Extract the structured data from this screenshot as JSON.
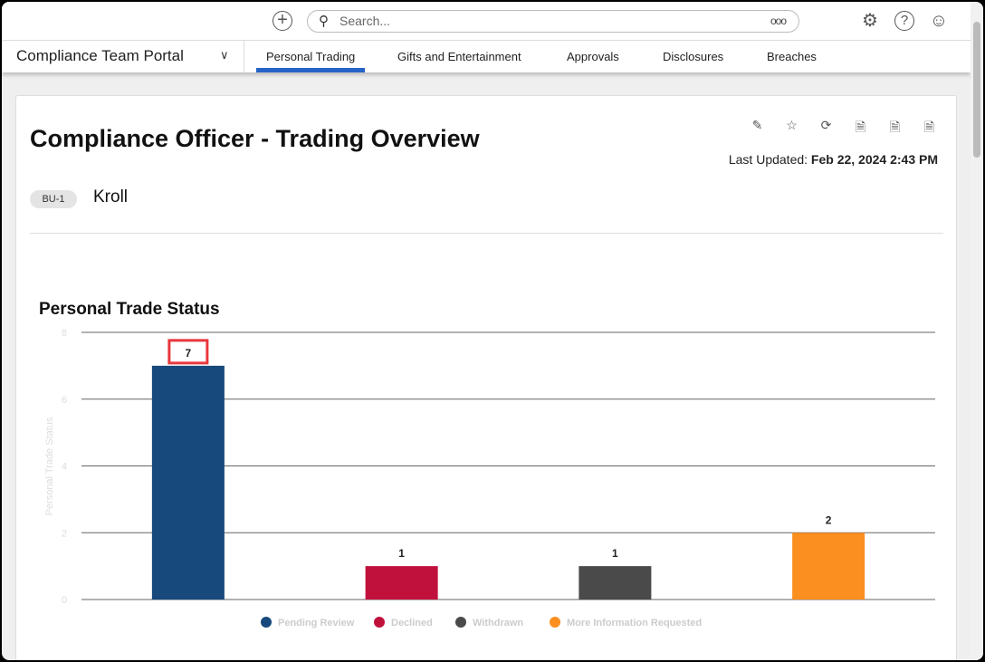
{
  "topbar": {
    "search_placeholder": "Search...",
    "more": "ooo"
  },
  "nav": {
    "portal": "Compliance Team Portal",
    "tabs": [
      "Personal Trading",
      "Gifts and Entertainment",
      "Approvals",
      "Disclosures",
      "Breaches"
    ],
    "active": 0
  },
  "page": {
    "title": "Compliance Officer - Trading Overview",
    "last_updated_label": "Last Updated:",
    "last_updated_value": "Feb 22, 2024 2:43 PM",
    "badge": "BU-1",
    "business_unit": "Kroll"
  },
  "chart_data": {
    "type": "bar",
    "title": "Personal Trade Status",
    "ylabel": "Personal Trade Status",
    "xlabel": "",
    "ylim": [
      0,
      8
    ],
    "yticks": [
      0,
      2,
      4,
      6,
      8
    ],
    "categories": [
      "Pending Review",
      "Declined",
      "Withdrawn",
      "More Information Requested"
    ],
    "values": [
      7,
      1,
      1,
      2
    ],
    "colors": [
      "#17497c",
      "#c0113d",
      "#4a4a4a",
      "#fb8f1f"
    ],
    "legend": "bottom",
    "highlighted": 0
  }
}
